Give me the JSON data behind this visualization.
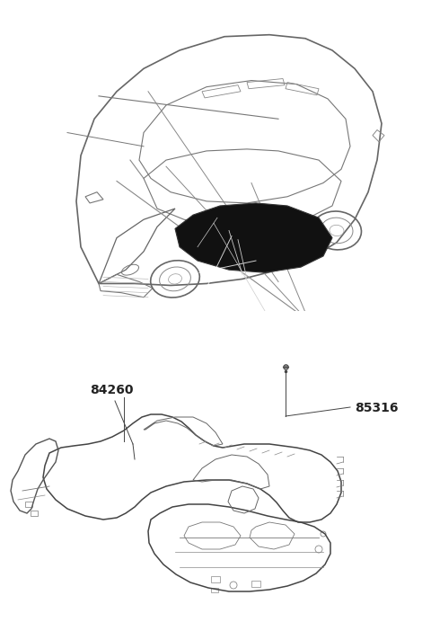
{
  "background_color": "#ffffff",
  "label_84260": "84260",
  "label_85316": "85316",
  "line_color": "#555555",
  "line_color_light": "#888888",
  "line_color_dark": "#333333",
  "carpet_fill": "#111111",
  "font_size_labels": 10,
  "fig_width": 4.8,
  "fig_height": 6.92,
  "dpi": 100
}
